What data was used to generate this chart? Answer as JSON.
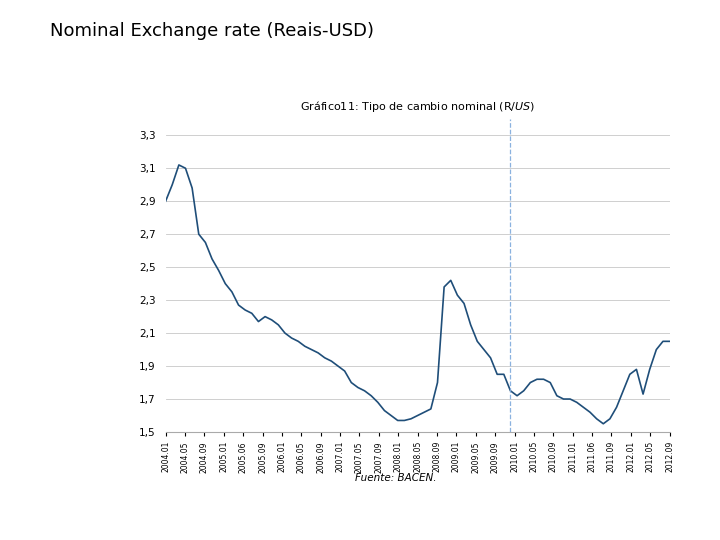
{
  "title_main": "Nominal Exchange rate (Reais-USD)",
  "chart_title": "Gráfico11: Tipo de cambio nominal (R$ / US$)",
  "source_text": "Fuente: BACEN.",
  "line_color": "#1F4E79",
  "background_color": "#ffffff",
  "ylim": [
    1.5,
    3.4
  ],
  "yticks": [
    1.5,
    1.7,
    1.9,
    2.1,
    2.3,
    2.5,
    2.7,
    2.9,
    3.1,
    3.3
  ],
  "vline_color": "#7faadc",
  "vline_idx": 52,
  "x_labels": [
    "2004.01",
    "2004.05",
    "2004.09",
    "2005.01",
    "2005.06",
    "2005.09",
    "2006.01",
    "2006.05",
    "2006.09",
    "2007.01",
    "2007.05",
    "2007.09",
    "2008.01",
    "2008.05",
    "2008.09",
    "2009.01",
    "2009.05",
    "2009.09",
    "2010.01",
    "2010.05",
    "2010.09",
    "2011.01",
    "2011.06",
    "2011.09",
    "2012.01",
    "2012.05",
    "2012.09"
  ],
  "series_y": [
    2.9,
    3.0,
    3.12,
    3.1,
    2.98,
    2.7,
    2.65,
    2.55,
    2.48,
    2.4,
    2.35,
    2.27,
    2.24,
    2.22,
    2.17,
    2.2,
    2.18,
    2.15,
    2.1,
    2.07,
    2.05,
    2.02,
    2.0,
    1.98,
    1.95,
    1.93,
    1.9,
    1.87,
    1.8,
    1.77,
    1.75,
    1.72,
    1.68,
    1.63,
    1.6,
    1.57,
    1.57,
    1.58,
    1.6,
    1.62,
    1.64,
    1.8,
    2.38,
    2.42,
    2.33,
    2.28,
    2.15,
    2.05,
    2.0,
    1.95,
    1.85,
    1.85,
    1.75,
    1.72,
    1.75,
    1.8,
    1.82,
    1.82,
    1.8,
    1.72,
    1.7,
    1.7,
    1.68,
    1.65,
    1.62,
    1.58,
    1.55,
    1.58,
    1.65,
    1.75,
    1.85,
    1.88,
    1.73,
    1.88,
    2.0,
    2.05,
    2.05
  ]
}
